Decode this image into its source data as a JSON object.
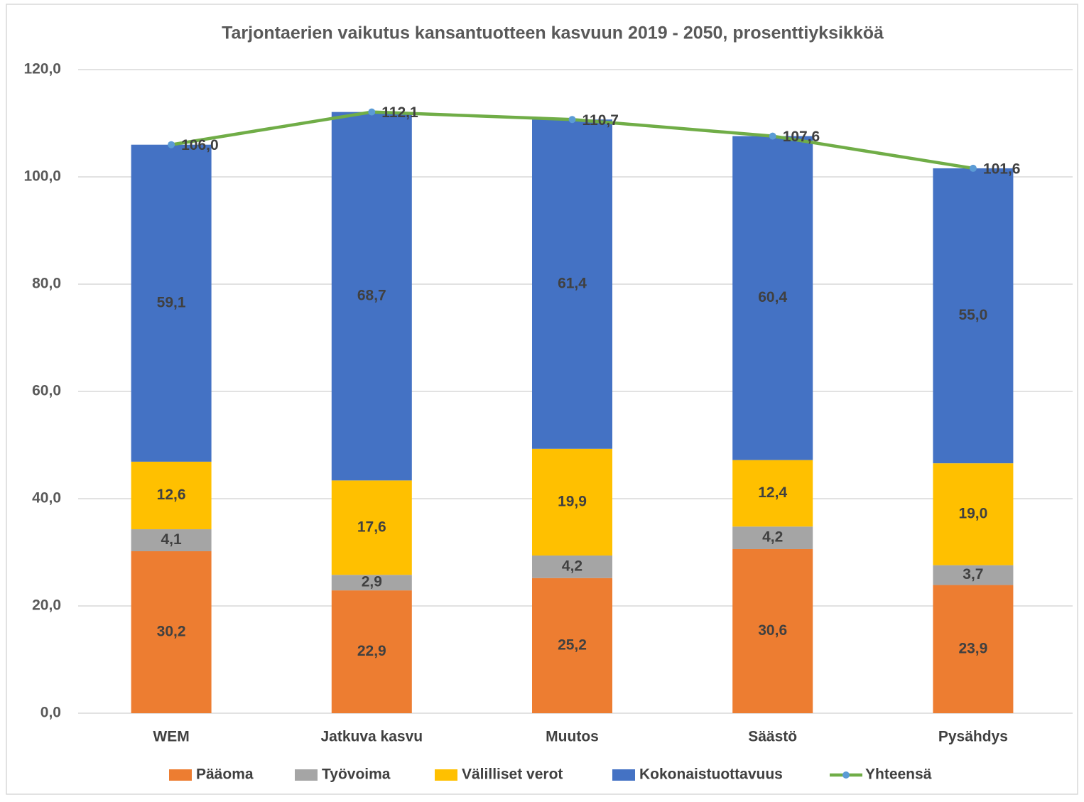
{
  "chart_data": {
    "type": "bar",
    "stacked": true,
    "title": "Tarjontaerien vaikutus kansantuotteen kasvuun 2019 - 2050, prosenttiyksikköä",
    "categories": [
      "WEM",
      "Jatkuva kasvu",
      "Muutos",
      "Säästö",
      "Pysähdys"
    ],
    "series": [
      {
        "name": "Pääoma",
        "color": "#ed7d31",
        "values": [
          30.2,
          22.9,
          25.2,
          30.6,
          23.9
        ],
        "value_labels": [
          "30,2",
          "22,9",
          "25,2",
          "30,6",
          "23,9"
        ]
      },
      {
        "name": "Työvoima",
        "color": "#a5a5a5",
        "values": [
          4.1,
          2.9,
          4.2,
          4.2,
          3.7
        ],
        "value_labels": [
          "4,1",
          "2,9",
          "4,2",
          "4,2",
          "3,7"
        ]
      },
      {
        "name": "Välilliset verot",
        "color": "#ffc000",
        "values": [
          12.6,
          17.6,
          19.9,
          12.4,
          19.0
        ],
        "value_labels": [
          "12,6",
          "17,6",
          "19,9",
          "12,4",
          "19,0"
        ]
      },
      {
        "name": "Kokonaistuottavuus",
        "color": "#4472c4",
        "values": [
          59.1,
          68.7,
          61.4,
          60.4,
          55.0
        ],
        "value_labels": [
          "59,1",
          "68,7",
          "61,4",
          "60,4",
          "55,0"
        ]
      },
      {
        "name": "Yhteensä",
        "type": "line",
        "color": "#70ad47",
        "marker_color": "#5b9bd5",
        "values": [
          106.0,
          112.1,
          110.7,
          107.6,
          101.6
        ],
        "value_labels": [
          "106,0",
          "112,1",
          "110,7",
          "107,6",
          "101,6"
        ]
      }
    ],
    "ylim": [
      0,
      120
    ],
    "yticks": [
      {
        "value": 0,
        "label": "0,0"
      },
      {
        "value": 20,
        "label": "20,0"
      },
      {
        "value": 40,
        "label": "40,0"
      },
      {
        "value": 60,
        "label": "60,0"
      },
      {
        "value": 80,
        "label": "80,0"
      },
      {
        "value": 100,
        "label": "100,0"
      },
      {
        "value": 120,
        "label": "120,0"
      }
    ],
    "grid": true,
    "legend": "bottom"
  }
}
